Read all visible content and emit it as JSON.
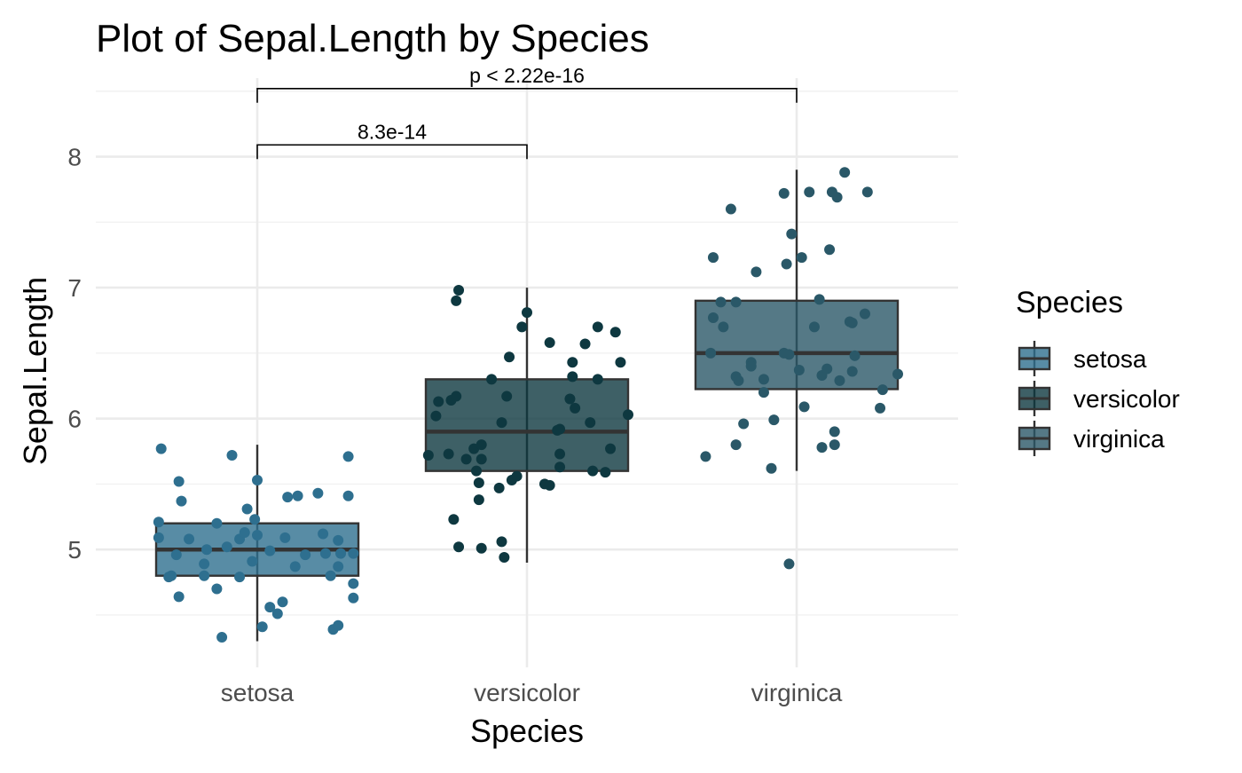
{
  "chart_data": {
    "type": "box",
    "title": "Plot of Sepal.Length by Species",
    "xlabel": "Species",
    "ylabel": "Sepal.Length",
    "categories": [
      "setosa",
      "versicolor",
      "virginica"
    ],
    "ylim": [
      4.1,
      8.6
    ],
    "yticks": [
      5,
      6,
      7,
      8
    ],
    "grid": true,
    "legend": {
      "title": "Species",
      "position": "right",
      "entries": [
        "setosa",
        "versicolor",
        "virginica"
      ]
    },
    "colors": {
      "setosa": "#2e6f8f",
      "versicolor": "#0e3840",
      "virginica": "#2a5868"
    },
    "series": [
      {
        "name": "setosa",
        "box": {
          "min": 4.3,
          "q1": 4.8,
          "median": 5.0,
          "q3": 5.2,
          "max": 5.8
        },
        "points": [
          {
            "x": -0.38,
            "y": 5.77
          },
          {
            "x": -0.31,
            "y": 5.52
          },
          {
            "x": -0.3,
            "y": 5.37
          },
          {
            "x": -0.39,
            "y": 5.21
          },
          {
            "x": -0.39,
            "y": 5.09
          },
          {
            "x": -0.34,
            "y": 4.8
          },
          {
            "x": -0.35,
            "y": 4.79
          },
          {
            "x": -0.32,
            "y": 4.96
          },
          {
            "x": -0.27,
            "y": 5.08
          },
          {
            "x": -0.31,
            "y": 4.64
          },
          {
            "x": -0.21,
            "y": 4.89
          },
          {
            "x": -0.21,
            "y": 4.8
          },
          {
            "x": -0.2,
            "y": 5.0
          },
          {
            "x": -0.16,
            "y": 5.2
          },
          {
            "x": -0.16,
            "y": 4.7
          },
          {
            "x": -0.12,
            "y": 5.02
          },
          {
            "x": -0.14,
            "y": 4.33
          },
          {
            "x": -0.1,
            "y": 5.72
          },
          {
            "x": -0.07,
            "y": 5.08
          },
          {
            "x": -0.07,
            "y": 4.79
          },
          {
            "x": -0.05,
            "y": 5.13
          },
          {
            "x": -0.04,
            "y": 5.31
          },
          {
            "x": -0.01,
            "y": 5.23
          },
          {
            "x": 0.0,
            "y": 5.53
          },
          {
            "x": 0.0,
            "y": 5.11
          },
          {
            "x": -0.02,
            "y": 4.91
          },
          {
            "x": 0.02,
            "y": 4.41
          },
          {
            "x": 0.05,
            "y": 4.99
          },
          {
            "x": 0.05,
            "y": 4.56
          },
          {
            "x": 0.08,
            "y": 4.51
          },
          {
            "x": 0.1,
            "y": 4.6
          },
          {
            "x": 0.11,
            "y": 5.09
          },
          {
            "x": 0.12,
            "y": 5.4
          },
          {
            "x": 0.16,
            "y": 5.41
          },
          {
            "x": 0.15,
            "y": 4.87
          },
          {
            "x": 0.19,
            "y": 4.96
          },
          {
            "x": 0.24,
            "y": 5.43
          },
          {
            "x": 0.26,
            "y": 5.12
          },
          {
            "x": 0.29,
            "y": 4.8
          },
          {
            "x": 0.3,
            "y": 4.39
          },
          {
            "x": 0.32,
            "y": 4.42
          },
          {
            "x": 0.32,
            "y": 5.07
          },
          {
            "x": 0.32,
            "y": 4.87
          },
          {
            "x": 0.33,
            "y": 4.97
          },
          {
            "x": 0.36,
            "y": 5.41
          },
          {
            "x": 0.36,
            "y": 5.71
          },
          {
            "x": 0.38,
            "y": 4.97
          },
          {
            "x": 0.38,
            "y": 4.74
          },
          {
            "x": 0.38,
            "y": 4.63
          },
          {
            "x": 0.27,
            "y": 4.97
          }
        ]
      },
      {
        "name": "versicolor",
        "box": {
          "min": 4.9,
          "q1": 5.6,
          "median": 5.9,
          "q3": 6.3,
          "max": 7.0
        },
        "points": [
          {
            "x": -0.27,
            "y": 6.98
          },
          {
            "x": -0.28,
            "y": 6.9
          },
          {
            "x": -0.35,
            "y": 6.13
          },
          {
            "x": -0.36,
            "y": 6.02
          },
          {
            "x": -0.39,
            "y": 5.72
          },
          {
            "x": -0.3,
            "y": 6.14
          },
          {
            "x": -0.28,
            "y": 6.17
          },
          {
            "x": -0.31,
            "y": 5.73
          },
          {
            "x": -0.29,
            "y": 5.23
          },
          {
            "x": -0.27,
            "y": 5.02
          },
          {
            "x": -0.24,
            "y": 5.69
          },
          {
            "x": -0.21,
            "y": 5.77
          },
          {
            "x": -0.2,
            "y": 5.6
          },
          {
            "x": -0.19,
            "y": 5.38
          },
          {
            "x": -0.19,
            "y": 5.51
          },
          {
            "x": -0.18,
            "y": 5.01
          },
          {
            "x": -0.18,
            "y": 5.8
          },
          {
            "x": -0.14,
            "y": 6.3
          },
          {
            "x": -0.11,
            "y": 5.47
          },
          {
            "x": -0.1,
            "y": 5.97
          },
          {
            "x": -0.1,
            "y": 5.06
          },
          {
            "x": -0.09,
            "y": 4.94
          },
          {
            "x": -0.08,
            "y": 6.17
          },
          {
            "x": -0.06,
            "y": 5.53
          },
          {
            "x": -0.04,
            "y": 5.56
          },
          {
            "x": -0.02,
            "y": 6.7
          },
          {
            "x": 0.0,
            "y": 6.81
          },
          {
            "x": -0.07,
            "y": 6.47
          },
          {
            "x": -0.18,
            "y": 5.69
          },
          {
            "x": 0.07,
            "y": 5.5
          },
          {
            "x": 0.09,
            "y": 6.58
          },
          {
            "x": 0.09,
            "y": 5.49
          },
          {
            "x": 0.12,
            "y": 5.91
          },
          {
            "x": 0.13,
            "y": 5.63
          },
          {
            "x": 0.13,
            "y": 5.92
          },
          {
            "x": 0.13,
            "y": 5.73
          },
          {
            "x": 0.17,
            "y": 6.15
          },
          {
            "x": 0.18,
            "y": 6.43
          },
          {
            "x": 0.18,
            "y": 6.32
          },
          {
            "x": 0.19,
            "y": 6.08
          },
          {
            "x": 0.23,
            "y": 6.57
          },
          {
            "x": 0.25,
            "y": 5.97
          },
          {
            "x": 0.26,
            "y": 5.6
          },
          {
            "x": 0.28,
            "y": 6.3
          },
          {
            "x": 0.28,
            "y": 6.7
          },
          {
            "x": 0.31,
            "y": 5.59
          },
          {
            "x": 0.33,
            "y": 5.77
          },
          {
            "x": 0.35,
            "y": 6.66
          },
          {
            "x": 0.37,
            "y": 6.43
          },
          {
            "x": 0.4,
            "y": 6.03
          }
        ]
      },
      {
        "name": "virginica",
        "box": {
          "min": 5.6,
          "q1": 6.225,
          "median": 6.5,
          "q3": 6.9,
          "max": 7.9
        },
        "points": [
          {
            "x": -0.36,
            "y": 5.71
          },
          {
            "x": -0.34,
            "y": 6.5
          },
          {
            "x": -0.33,
            "y": 7.23
          },
          {
            "x": -0.33,
            "y": 6.77
          },
          {
            "x": -0.3,
            "y": 6.89
          },
          {
            "x": -0.29,
            "y": 6.7
          },
          {
            "x": -0.26,
            "y": 7.6
          },
          {
            "x": -0.24,
            "y": 6.89
          },
          {
            "x": -0.24,
            "y": 5.8
          },
          {
            "x": -0.24,
            "y": 6.32
          },
          {
            "x": -0.23,
            "y": 6.29
          },
          {
            "x": -0.21,
            "y": 5.96
          },
          {
            "x": -0.18,
            "y": 6.43
          },
          {
            "x": -0.18,
            "y": 6.4
          },
          {
            "x": -0.16,
            "y": 7.12
          },
          {
            "x": -0.13,
            "y": 6.3
          },
          {
            "x": -0.13,
            "y": 6.2
          },
          {
            "x": -0.1,
            "y": 5.62
          },
          {
            "x": -0.09,
            "y": 5.99
          },
          {
            "x": -0.05,
            "y": 7.72
          },
          {
            "x": -0.05,
            "y": 6.5
          },
          {
            "x": -0.04,
            "y": 7.18
          },
          {
            "x": -0.02,
            "y": 7.41
          },
          {
            "x": -0.03,
            "y": 6.49
          },
          {
            "x": -0.03,
            "y": 4.89
          },
          {
            "x": 0.01,
            "y": 6.37
          },
          {
            "x": 0.02,
            "y": 7.23
          },
          {
            "x": 0.03,
            "y": 6.09
          },
          {
            "x": 0.05,
            "y": 7.73
          },
          {
            "x": 0.07,
            "y": 6.7
          },
          {
            "x": 0.09,
            "y": 6.91
          },
          {
            "x": 0.1,
            "y": 6.33
          },
          {
            "x": 0.1,
            "y": 5.78
          },
          {
            "x": 0.12,
            "y": 6.38
          },
          {
            "x": 0.13,
            "y": 7.29
          },
          {
            "x": 0.15,
            "y": 5.9
          },
          {
            "x": 0.15,
            "y": 5.8
          },
          {
            "x": 0.14,
            "y": 7.73
          },
          {
            "x": 0.16,
            "y": 7.69
          },
          {
            "x": 0.17,
            "y": 6.29
          },
          {
            "x": 0.19,
            "y": 7.88
          },
          {
            "x": 0.21,
            "y": 6.74
          },
          {
            "x": 0.22,
            "y": 6.73
          },
          {
            "x": 0.23,
            "y": 6.48
          },
          {
            "x": 0.27,
            "y": 6.8
          },
          {
            "x": 0.28,
            "y": 7.73
          },
          {
            "x": 0.33,
            "y": 6.08
          },
          {
            "x": 0.34,
            "y": 6.22
          },
          {
            "x": 0.4,
            "y": 6.34
          },
          {
            "x": 0.22,
            "y": 6.36
          }
        ]
      }
    ],
    "comparisons": [
      {
        "from": "setosa",
        "to": "versicolor",
        "label": "8.3e-14",
        "y": 8.09
      },
      {
        "from": "setosa",
        "to": "virginica",
        "label": "p < 2.22e-16",
        "y": 8.52
      }
    ]
  }
}
